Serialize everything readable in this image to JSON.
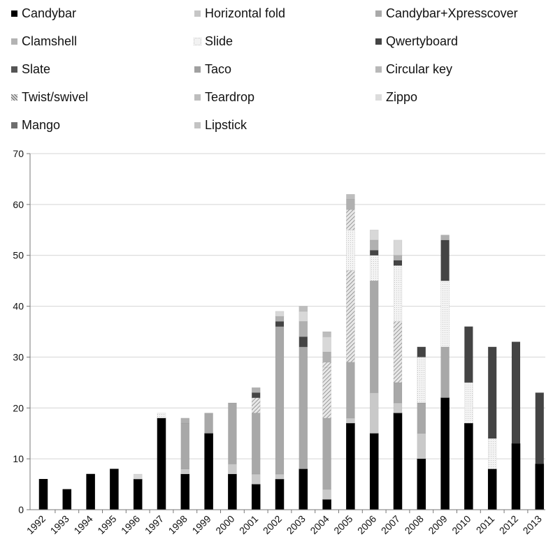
{
  "chart_data": {
    "type": "bar",
    "stacked": true,
    "title": "",
    "xlabel": "",
    "ylabel": "",
    "ylim": [
      0,
      70
    ],
    "yticks": [
      0,
      10,
      20,
      30,
      40,
      50,
      60,
      70
    ],
    "grid": true,
    "legend_position": "top",
    "categories": [
      "1992",
      "1993",
      "1994",
      "1995",
      "1996",
      "1997",
      "1998",
      "1999",
      "2000",
      "2001",
      "2002",
      "2003",
      "2004",
      "2005",
      "2006",
      "2007",
      "2008",
      "2009",
      "2010",
      "2011",
      "2012",
      "2013"
    ],
    "series": [
      {
        "name": "Candybar",
        "color": "#000000",
        "pattern": "solid",
        "values": [
          6,
          4,
          7,
          8,
          6,
          18,
          7,
          15,
          7,
          5,
          6,
          8,
          2,
          17,
          15,
          19,
          10,
          22,
          17,
          8,
          13,
          9
        ]
      },
      {
        "name": "Clamshell",
        "color": "#c9c9c9",
        "pattern": "solid",
        "values": [
          0,
          0,
          0,
          0,
          0,
          0,
          1,
          0,
          2,
          2,
          1,
          0,
          2,
          1,
          8,
          2,
          5,
          0,
          0,
          0,
          0,
          0
        ]
      },
      {
        "name": "Slate",
        "color": "#a8a8a8",
        "pattern": "solid",
        "values": [
          0,
          0,
          0,
          0,
          0,
          0,
          9,
          4,
          12,
          12,
          29,
          24,
          14,
          11,
          22,
          4,
          6,
          10,
          0,
          0,
          0,
          0
        ]
      },
      {
        "name": "Twist/swivel",
        "color": "#e3e3e3",
        "pattern": "hatch",
        "values": [
          0,
          0,
          0,
          0,
          0,
          0,
          0,
          0,
          0,
          3,
          0,
          0,
          10,
          18,
          0,
          12,
          0,
          0,
          0,
          0,
          0,
          0
        ]
      },
      {
        "name": "Mango",
        "color": "#f1f1f1",
        "pattern": "dots",
        "values": [
          0,
          0,
          0,
          0,
          0,
          1,
          0,
          0,
          0,
          0,
          0,
          0,
          0,
          8,
          5,
          11,
          9,
          13,
          8,
          6,
          0,
          0
        ]
      },
      {
        "name": "Horizontal fold",
        "color": "#444444",
        "pattern": "solid",
        "values": [
          0,
          0,
          0,
          0,
          0,
          0,
          0,
          0,
          0,
          1,
          1,
          2,
          0,
          0,
          1,
          1,
          2,
          8,
          11,
          18,
          20,
          14
        ]
      },
      {
        "name": "Slide",
        "color": "#8a8a8a",
        "pattern": "hatch",
        "values": [
          0,
          0,
          0,
          0,
          0,
          0,
          0,
          0,
          0,
          0,
          0,
          0,
          1,
          4,
          0,
          0,
          0,
          0,
          0,
          0,
          0,
          0
        ]
      },
      {
        "name": "Taco",
        "color": "#b0b0b0",
        "pattern": "solid",
        "values": [
          0,
          0,
          0,
          0,
          0,
          0,
          1,
          0,
          0,
          1,
          1,
          3,
          2,
          2,
          2,
          1,
          0,
          1,
          0,
          0,
          0,
          0
        ]
      },
      {
        "name": "Teardrop",
        "color": "#d8d8d8",
        "pattern": "solid",
        "values": [
          0,
          0,
          0,
          0,
          1,
          0,
          0,
          0,
          0,
          0,
          1,
          2,
          3,
          0,
          2,
          3,
          0,
          0,
          0,
          0,
          0,
          0
        ]
      },
      {
        "name": "Lipstick",
        "color": "#bdbdbd",
        "pattern": "solid",
        "values": [
          0,
          0,
          0,
          0,
          0,
          0,
          0,
          0,
          0,
          0,
          0,
          1,
          1,
          1,
          0,
          0,
          0,
          0,
          0,
          0,
          0,
          0
        ]
      }
    ],
    "legend": [
      {
        "name": "Candybar",
        "color": "#000000",
        "pattern": "solid"
      },
      {
        "name": "Horizontal fold",
        "color": "#c6c6c6",
        "pattern": "solid"
      },
      {
        "name": "Candybar+Xpresscover",
        "color": "#a9a9a9",
        "pattern": "solid"
      },
      {
        "name": "Clamshell",
        "color": "#b3b3b3",
        "pattern": "solid"
      },
      {
        "name": "Slide",
        "color": "#f0f0f0",
        "pattern": "dots"
      },
      {
        "name": "Qwertyboard",
        "color": "#444444",
        "pattern": "solid"
      },
      {
        "name": "Slate",
        "color": "#555555",
        "pattern": "solid"
      },
      {
        "name": "Taco",
        "color": "#a0a0a0",
        "pattern": "solid"
      },
      {
        "name": "Circular key",
        "color": "#b8b8b8",
        "pattern": "solid"
      },
      {
        "name": "Twist/swivel",
        "color": "#8a8a8a",
        "pattern": "hatch"
      },
      {
        "name": "Teardrop",
        "color": "#bdbdbd",
        "pattern": "solid"
      },
      {
        "name": "Zippo",
        "color": "#dcdcdc",
        "pattern": "solid"
      },
      {
        "name": "Mango",
        "color": "#6e6e6e",
        "pattern": "solid"
      },
      {
        "name": "Lipstick",
        "color": "#c3c3c3",
        "pattern": "solid"
      }
    ]
  }
}
